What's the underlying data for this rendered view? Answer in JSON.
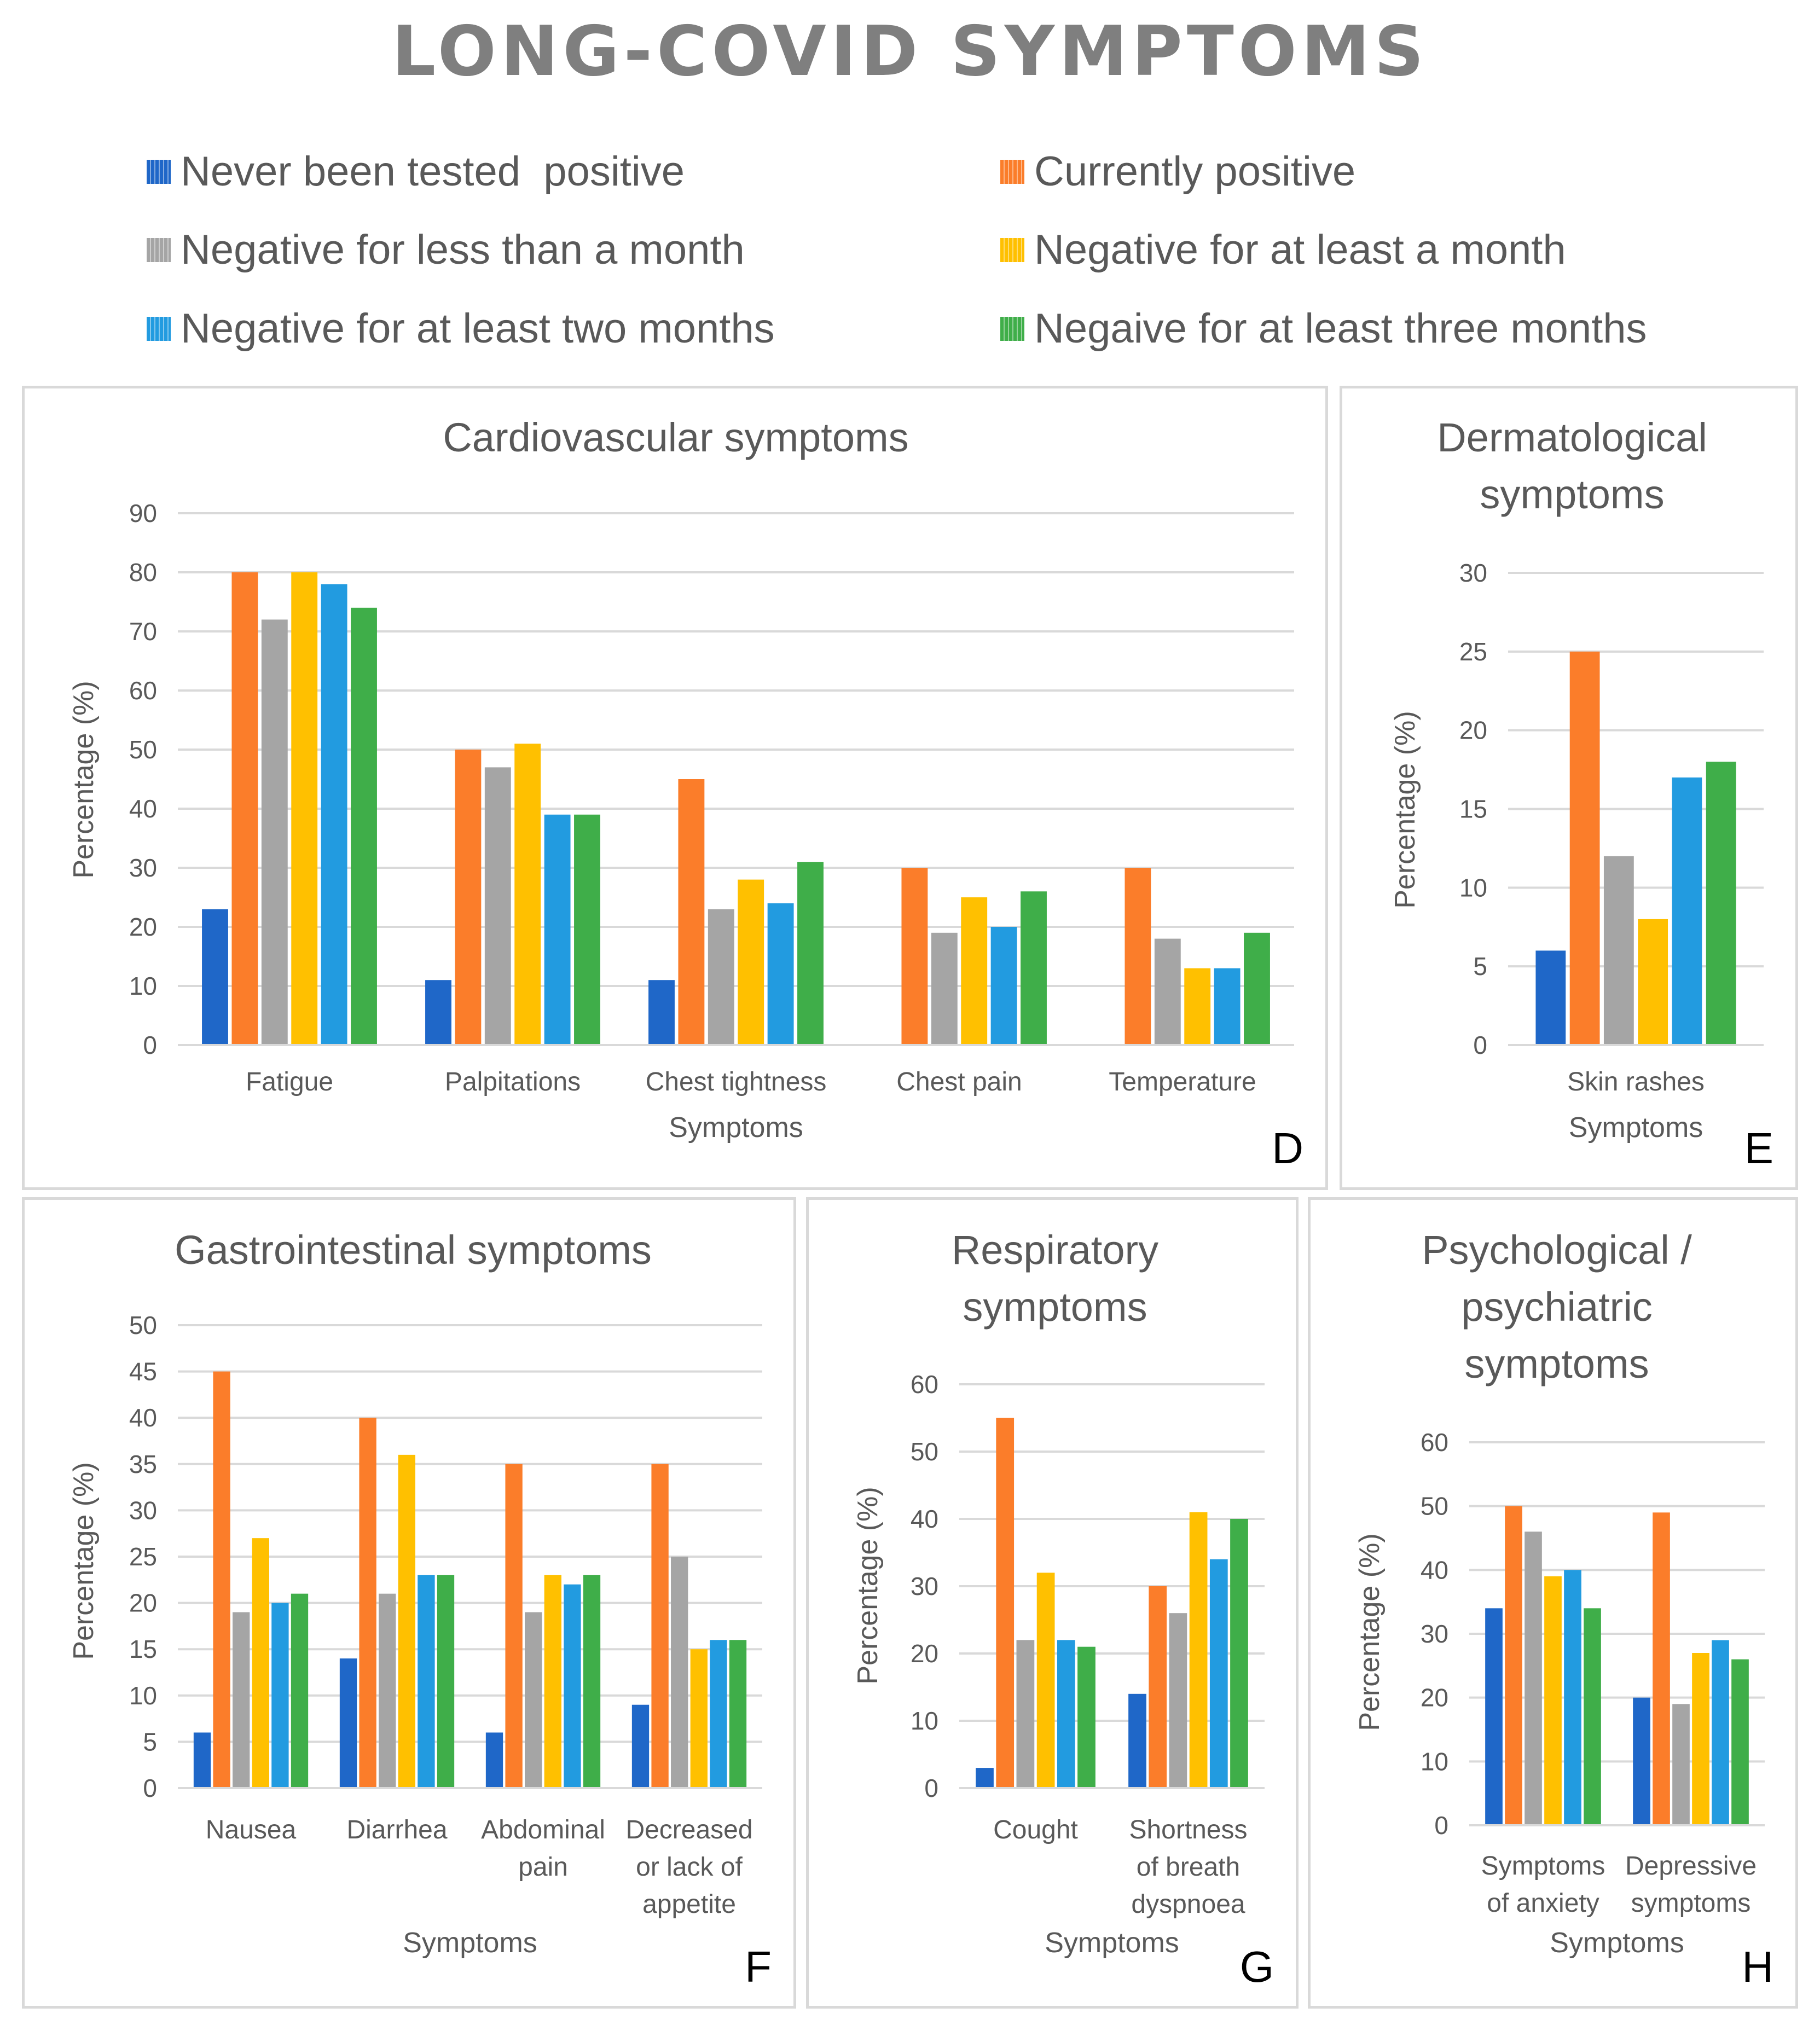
{
  "title": "LONG-COVID SYMPTOMS",
  "legend": [
    {
      "label": "Never been tested  positive",
      "color": "#1f67c8"
    },
    {
      "label": "Currently positive",
      "color": "#fb7d2a"
    },
    {
      "label": "Negative for less than a month",
      "color": "#a5a5a5"
    },
    {
      "label": "Negative for at least a month",
      "color": "#ffc000"
    },
    {
      "label": "Negative for at least two months",
      "color": "#229be0"
    },
    {
      "label": "Negaive for at least three months",
      "color": "#3fae49"
    }
  ],
  "chart_data": [
    {
      "id": "D",
      "letter": "D",
      "type": "bar",
      "title": [
        "Cardiovascular symptoms"
      ],
      "xlabel": "Symptoms",
      "ylabel": "Percentage (%)",
      "ylim": [
        0,
        90
      ],
      "yticks": [
        0,
        10,
        20,
        30,
        40,
        50,
        60,
        70,
        80,
        90
      ],
      "grid": true,
      "categories": [
        [
          "Fatigue"
        ],
        [
          "Palpitations"
        ],
        [
          "Chest tightness"
        ],
        [
          "Chest pain"
        ],
        [
          "Temperature"
        ]
      ],
      "series": [
        {
          "name": "Never been tested  positive",
          "values": [
            23,
            11,
            11,
            0,
            0
          ]
        },
        {
          "name": "Currently positive",
          "values": [
            80,
            50,
            45,
            30,
            30
          ]
        },
        {
          "name": "Negative for less than a month",
          "values": [
            72,
            47,
            23,
            19,
            18
          ]
        },
        {
          "name": "Negative for at least a month",
          "values": [
            80,
            51,
            28,
            25,
            13
          ]
        },
        {
          "name": "Negative for at least two months",
          "values": [
            78,
            39,
            24,
            20,
            13
          ]
        },
        {
          "name": "Negaive for at least three months",
          "values": [
            74,
            39,
            31,
            26,
            19
          ]
        }
      ]
    },
    {
      "id": "E",
      "letter": "E",
      "type": "bar",
      "title": [
        "Dermatological",
        "symptoms"
      ],
      "xlabel": "Symptoms",
      "ylabel": "Percentage (%)",
      "ylim": [
        0,
        30
      ],
      "yticks": [
        0,
        5,
        10,
        15,
        20,
        25,
        30
      ],
      "grid": true,
      "categories": [
        [
          "Skin rashes"
        ]
      ],
      "series": [
        {
          "name": "Never been tested  positive",
          "values": [
            6
          ]
        },
        {
          "name": "Currently positive",
          "values": [
            25
          ]
        },
        {
          "name": "Negative for less than a month",
          "values": [
            12
          ]
        },
        {
          "name": "Negative for at least a month",
          "values": [
            8
          ]
        },
        {
          "name": "Negative for at least two months",
          "values": [
            17
          ]
        },
        {
          "name": "Negaive for at least three months",
          "values": [
            18
          ]
        }
      ]
    },
    {
      "id": "F",
      "letter": "F",
      "type": "bar",
      "title": [
        "Gastrointestinal symptoms"
      ],
      "xlabel": "Symptoms",
      "ylabel": "Percentage (%)",
      "ylim": [
        0,
        50
      ],
      "yticks": [
        0,
        5,
        10,
        15,
        20,
        25,
        30,
        35,
        40,
        45,
        50
      ],
      "grid": true,
      "categories": [
        [
          "Nausea"
        ],
        [
          "Diarrhea"
        ],
        [
          "Abdominal",
          "pain"
        ],
        [
          "Decreased",
          "or lack of",
          "appetite"
        ]
      ],
      "series": [
        {
          "name": "Never been tested  positive",
          "values": [
            6,
            14,
            6,
            9
          ]
        },
        {
          "name": "Currently positive",
          "values": [
            45,
            40,
            35,
            35
          ]
        },
        {
          "name": "Negative for less than a month",
          "values": [
            19,
            21,
            19,
            25
          ]
        },
        {
          "name": "Negative for at least a month",
          "values": [
            27,
            36,
            23,
            15
          ]
        },
        {
          "name": "Negative for at least two months",
          "values": [
            20,
            23,
            22,
            16
          ]
        },
        {
          "name": "Negaive for at least three months",
          "values": [
            21,
            23,
            23,
            16
          ]
        }
      ]
    },
    {
      "id": "G",
      "letter": "G",
      "type": "bar",
      "title": [
        "Respiratory",
        "symptoms"
      ],
      "xlabel": "Symptoms",
      "ylabel": "Percentage (%)",
      "ylim": [
        0,
        60
      ],
      "yticks": [
        0,
        10,
        20,
        30,
        40,
        50,
        60
      ],
      "grid": true,
      "categories": [
        [
          "Cought"
        ],
        [
          "Shortness",
          "of breath",
          "dyspnoea"
        ]
      ],
      "series": [
        {
          "name": "Never been tested  positive",
          "values": [
            3,
            14
          ]
        },
        {
          "name": "Currently positive",
          "values": [
            55,
            30
          ]
        },
        {
          "name": "Negative for less than a month",
          "values": [
            22,
            26
          ]
        },
        {
          "name": "Negative for at least a month",
          "values": [
            32,
            41
          ]
        },
        {
          "name": "Negative for at least two months",
          "values": [
            22,
            34
          ]
        },
        {
          "name": "Negaive for at least three months",
          "values": [
            21,
            40
          ]
        }
      ]
    },
    {
      "id": "H",
      "letter": "H",
      "type": "bar",
      "title": [
        "Psychological /",
        "psychiatric",
        "symptoms"
      ],
      "xlabel": "Symptoms",
      "ylabel": "Percentage (%)",
      "ylim": [
        0,
        60
      ],
      "yticks": [
        0,
        10,
        20,
        30,
        40,
        50,
        60
      ],
      "grid": true,
      "categories": [
        [
          "Symptoms",
          "of anxiety"
        ],
        [
          "Depressive",
          "symptoms"
        ]
      ],
      "series": [
        {
          "name": "Never been tested  positive",
          "values": [
            34,
            20
          ]
        },
        {
          "name": "Currently positive",
          "values": [
            50,
            49
          ]
        },
        {
          "name": "Negative for less than a month",
          "values": [
            46,
            19
          ]
        },
        {
          "name": "Negative for at least a month",
          "values": [
            39,
            27
          ]
        },
        {
          "name": "Negative for at least two months",
          "values": [
            40,
            29
          ]
        },
        {
          "name": "Negaive for at least three months",
          "values": [
            34,
            26
          ]
        }
      ]
    }
  ]
}
